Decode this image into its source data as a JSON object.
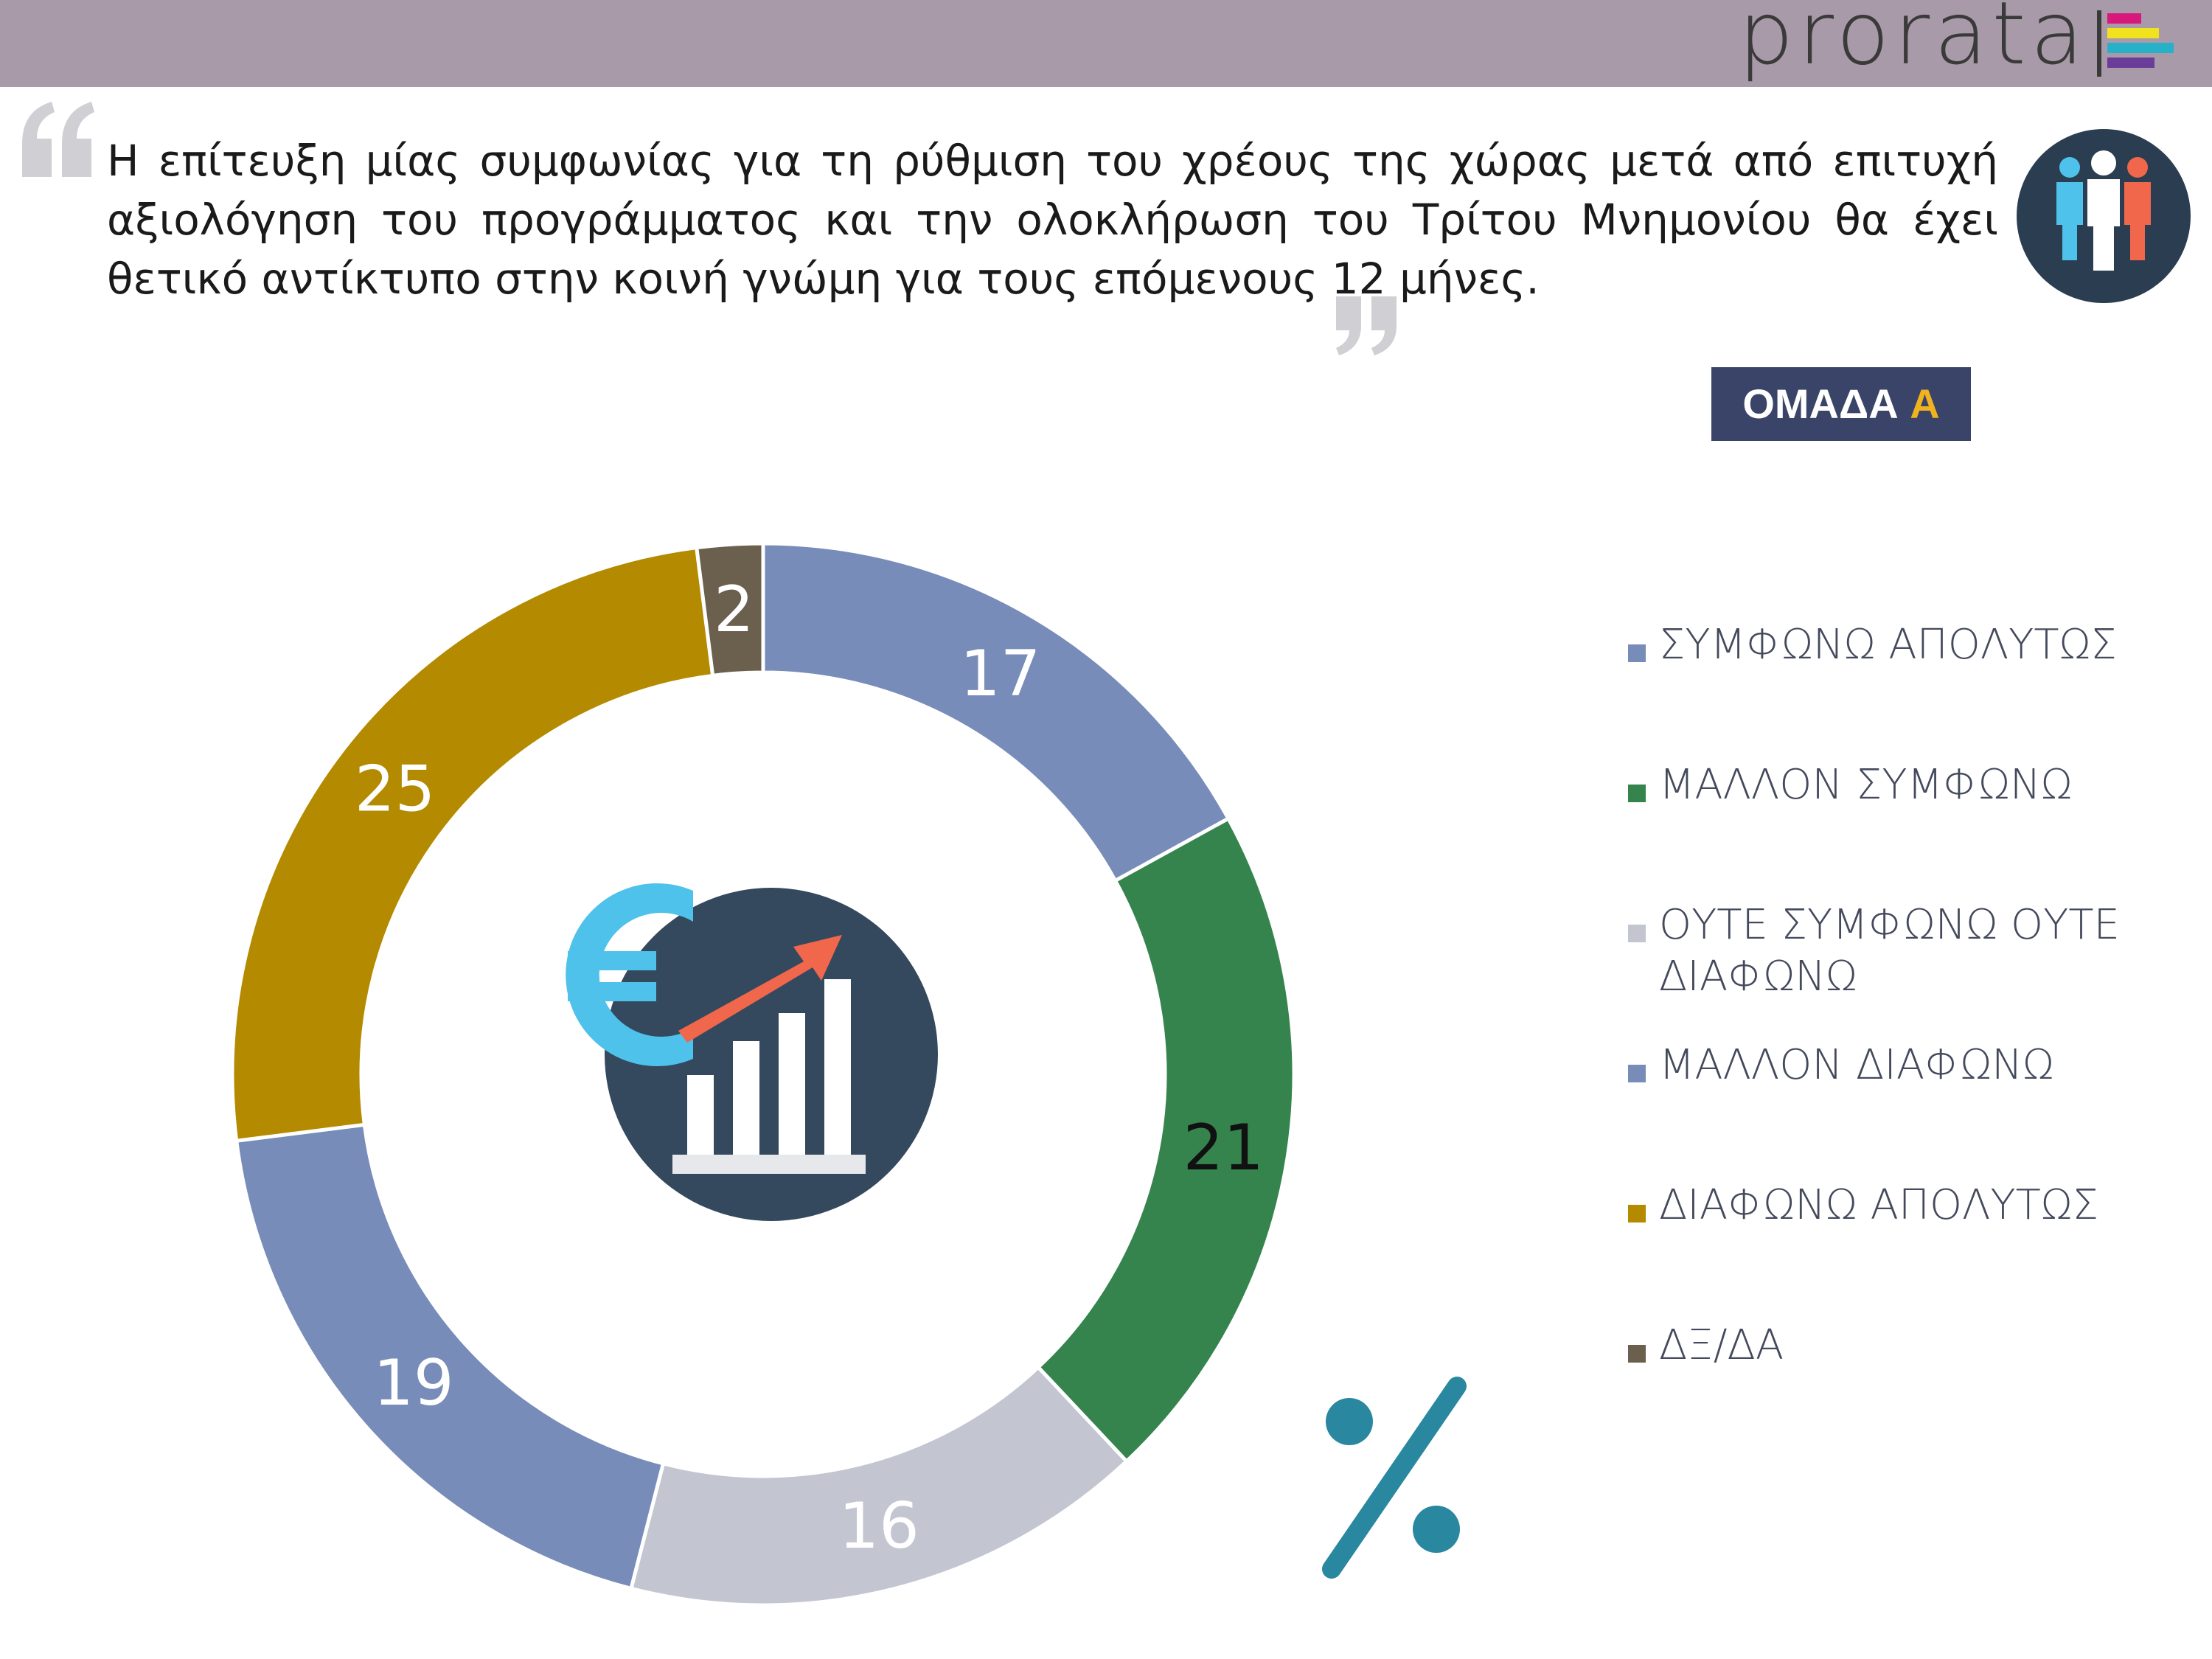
{
  "brand": {
    "name": "prorata"
  },
  "headline": "Η επίτευξη μίας συμφωνίας για τη ρύθμιση του χρέους της χώρας μετά από επιτυχή αξιολόγηση του προγράμματος και την ολοκλήρωση του Τρίτου Μνημονίου θα έχει θετικό αντίκτυπο στην κοινή γνώμη για τους επόμενους 12 μήνες.",
  "group_badge": {
    "prefix": "ΟΜΑΔΑ",
    "letter": "A"
  },
  "chart_data": {
    "type": "pie",
    "variant": "donut",
    "unit": "%",
    "categories": [
      "ΣΥΜΦΩΝΩ ΑΠΟΛΥΤΩΣ",
      "ΜΑΛΛΟΝ ΣΥΜΦΩΝΩ",
      "ΟΥΤΕ ΣΥΜΦΩΝΩ ΟΥΤΕ ΔΙΑΦΩΝΩ",
      "ΜΑΛΛΟΝ ΔΙΑΦΩΝΩ",
      "ΔΙΑΦΩΝΩ ΑΠΟΛΥΤΩΣ",
      "ΔΞ/ΔΑ"
    ],
    "values": [
      17,
      21,
      16,
      19,
      25,
      2
    ],
    "colors": [
      "#788cb9",
      "#35844e",
      "#c3c6d1",
      "#788cb9",
      "#b38a00",
      "#6b5f4e"
    ],
    "label_colors": [
      "#ffffff",
      "#111111",
      "#ffffff",
      "#ffffff",
      "#ffffff",
      "#ffffff"
    ],
    "legend_position": "right",
    "start": "top, clockwise"
  },
  "icons": {
    "quote_open": "quote-open-icon",
    "quote_close": "quote-close-icon",
    "people": "people-group-icon",
    "center": "euro-growth-chart-icon",
    "percent": "percent-icon"
  }
}
